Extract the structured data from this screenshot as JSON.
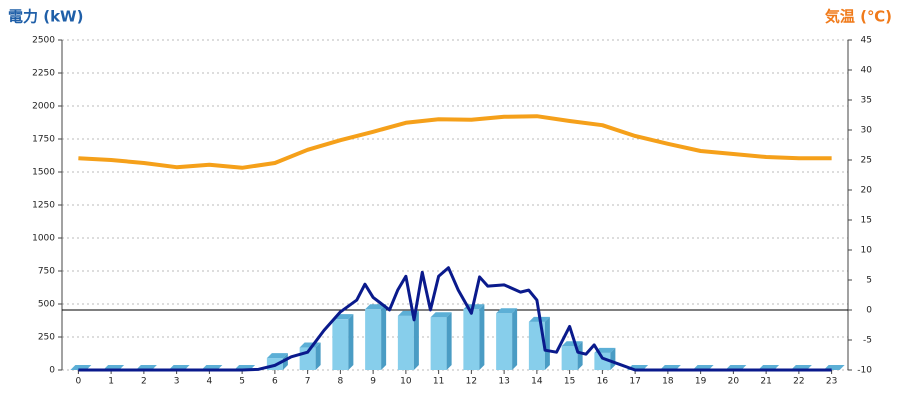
{
  "chart_data": {
    "type": "bar",
    "y_axis_label": "電力 (kW)",
    "y2_axis_label": "気温 (℃)",
    "x": [
      0,
      1,
      2,
      3,
      4,
      5,
      6,
      7,
      8,
      9,
      10,
      11,
      12,
      13,
      14,
      15,
      16,
      17,
      18,
      19,
      20,
      21,
      22,
      23
    ],
    "xlim": [
      -0.5,
      23.5
    ],
    "ylim": [
      0,
      2500
    ],
    "yticks": [
      0,
      250,
      500,
      750,
      1000,
      1250,
      1500,
      1750,
      2000,
      2250,
      2500
    ],
    "y2lim": [
      -10,
      45
    ],
    "y2ticks": [
      -10,
      -5,
      0,
      5,
      10,
      15,
      20,
      25,
      30,
      35,
      40,
      45
    ],
    "grid": true,
    "y2_reference_line": 0,
    "series": [
      {
        "type": "bar",
        "color": "#87ceeb",
        "values": [
          0,
          0,
          0,
          0,
          0,
          0,
          90,
          170,
          385,
          460,
          410,
          400,
          460,
          430,
          365,
          180,
          130,
          0,
          0,
          0,
          0,
          0,
          0,
          0
        ]
      },
      {
        "type": "line",
        "color": "#0a1a8c",
        "x": [
          0,
          1,
          2,
          3,
          4,
          5,
          5.5,
          6,
          6.5,
          7,
          7.5,
          8,
          8.5,
          8.75,
          9,
          9.5,
          9.75,
          10,
          10.25,
          10.5,
          10.75,
          11,
          11.3,
          11.6,
          12,
          12.25,
          12.5,
          13,
          13.5,
          13.75,
          14,
          14.25,
          14.6,
          15,
          15.25,
          15.5,
          15.75,
          16,
          16.5,
          17,
          18,
          19,
          20,
          21,
          22,
          23
        ],
        "values": [
          0,
          0,
          0,
          0,
          0,
          0,
          5,
          35,
          100,
          135,
          300,
          440,
          530,
          650,
          550,
          455,
          605,
          710,
          380,
          740,
          455,
          710,
          775,
          605,
          430,
          705,
          635,
          645,
          590,
          605,
          530,
          150,
          135,
          330,
          135,
          120,
          190,
          90,
          45,
          0,
          0,
          0,
          0,
          0,
          0,
          0
        ]
      },
      {
        "type": "line",
        "axis": "y2",
        "color": "#f5a01a",
        "values": [
          25.3,
          25,
          24.5,
          23.8,
          24.2,
          23.7,
          24.5,
          26.7,
          28.3,
          29.7,
          31.2,
          31.8,
          31.7,
          32.2,
          32.3,
          31.5,
          30.8,
          29,
          27.7,
          26.5,
          26,
          25.5,
          25.3,
          25.3
        ]
      }
    ]
  }
}
